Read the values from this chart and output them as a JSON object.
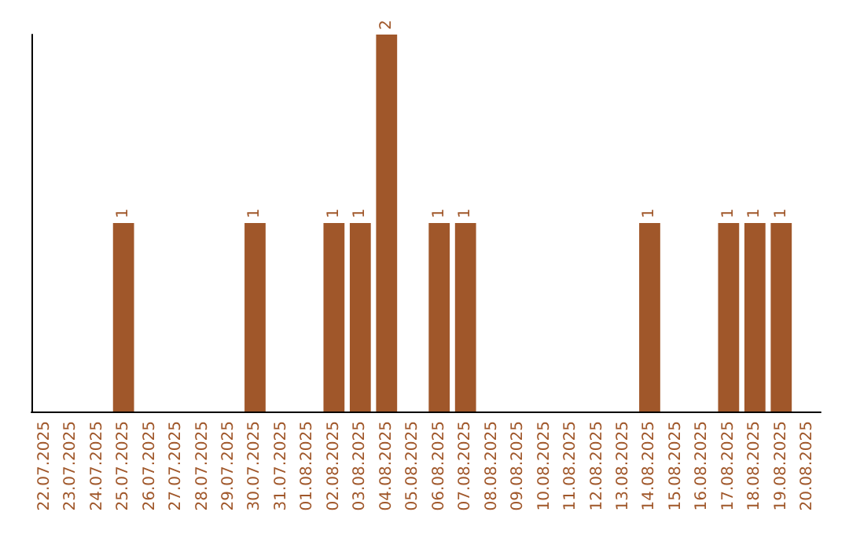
{
  "chart_data": {
    "type": "bar",
    "categories": [
      "22.07.2025",
      "23.07.2025",
      "24.07.2025",
      "25.07.2025",
      "26.07.2025",
      "27.07.2025",
      "28.07.2025",
      "29.07.2025",
      "30.07.2025",
      "31.07.2025",
      "01.08.2025",
      "02.08.2025",
      "03.08.2025",
      "04.08.2025",
      "05.08.2025",
      "06.08.2025",
      "07.08.2025",
      "08.08.2025",
      "09.08.2025",
      "10.08.2025",
      "11.08.2025",
      "12.08.2025",
      "13.08.2025",
      "14.08.2025",
      "15.08.2025",
      "16.08.2025",
      "17.08.2025",
      "18.08.2025",
      "19.08.2025",
      "20.08.2025"
    ],
    "values": [
      0,
      0,
      0,
      1,
      0,
      0,
      0,
      0,
      1,
      0,
      0,
      1,
      1,
      2,
      0,
      1,
      1,
      0,
      0,
      0,
      0,
      0,
      0,
      1,
      0,
      0,
      1,
      1,
      1,
      0
    ],
    "value_labels": [
      null,
      null,
      null,
      "1",
      null,
      null,
      null,
      null,
      "1",
      null,
      null,
      "1",
      "1",
      "2",
      null,
      "1",
      "1",
      null,
      null,
      null,
      null,
      null,
      null,
      "1",
      null,
      null,
      "1",
      "1",
      "1",
      null
    ],
    "color": "#a0572a",
    "tick_labels": "x"
  }
}
